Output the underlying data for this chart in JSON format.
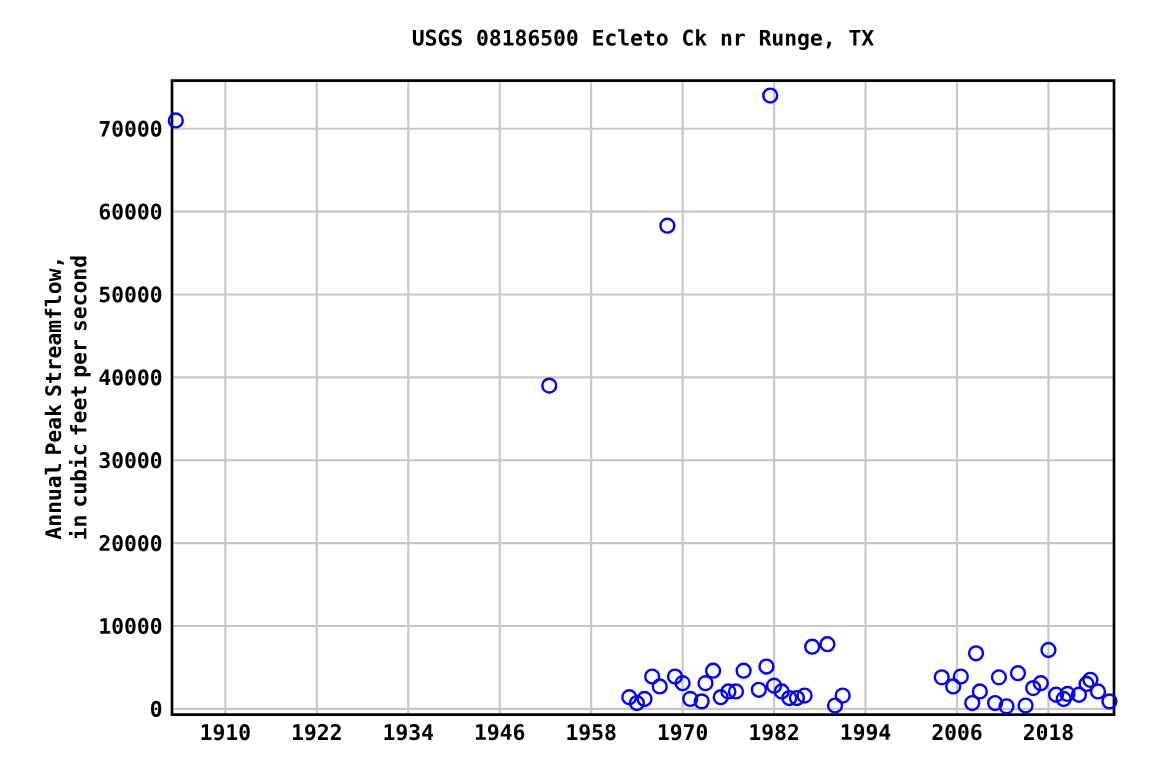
{
  "chart_data": {
    "type": "scatter",
    "title": "USGS 08186500 Ecleto Ck nr Runge, TX",
    "ylabel": "Annual Peak Streamflow, in cubic feet per second",
    "x": [
      1903.5,
      1952.5,
      1968,
      1981.5,
      1963,
      1964,
      1965,
      1966,
      1967,
      1969,
      1970,
      1971,
      1972.5,
      1973,
      1974,
      1975,
      1976,
      1977,
      1978,
      1980,
      1981,
      1982,
      1983,
      1984,
      1985,
      1986,
      1987,
      1989,
      1990,
      1991,
      2004,
      2005.5,
      2006.5,
      2008,
      2008.5,
      2009,
      2011,
      2011.5,
      2012.5,
      2014,
      2015,
      2016,
      2017,
      2018,
      2019,
      2020,
      2020.5,
      2022,
      2023,
      2023.5,
      2024.5,
      2026
    ],
    "values": [
      71000,
      39000,
      58300,
      74000,
      1400,
      700,
      1200,
      3900,
      2700,
      3900,
      3100,
      1200,
      900,
      3100,
      4600,
      1400,
      2100,
      2100,
      4600,
      2300,
      5100,
      2800,
      2100,
      1300,
      1300,
      1600,
      7500,
      7800,
      400,
      1600,
      3800,
      2700,
      3900,
      700,
      6700,
      2100,
      700,
      3800,
      300,
      4300,
      400,
      2500,
      3100,
      7100,
      1700,
      1200,
      1800,
      1700,
      3000,
      3500,
      2100,
      900
    ],
    "color": "#0000ff",
    "marker": "circle",
    "grid": true,
    "xlim": [
      1903,
      2026.6
    ],
    "ylim": [
      -700,
      75800
    ],
    "xticks": [
      1910,
      1922,
      1934,
      1946,
      1958,
      1970,
      1982,
      1994,
      2006,
      2018
    ],
    "yticks": [
      0,
      10000,
      20000,
      30000,
      40000,
      50000,
      60000,
      70000
    ]
  }
}
